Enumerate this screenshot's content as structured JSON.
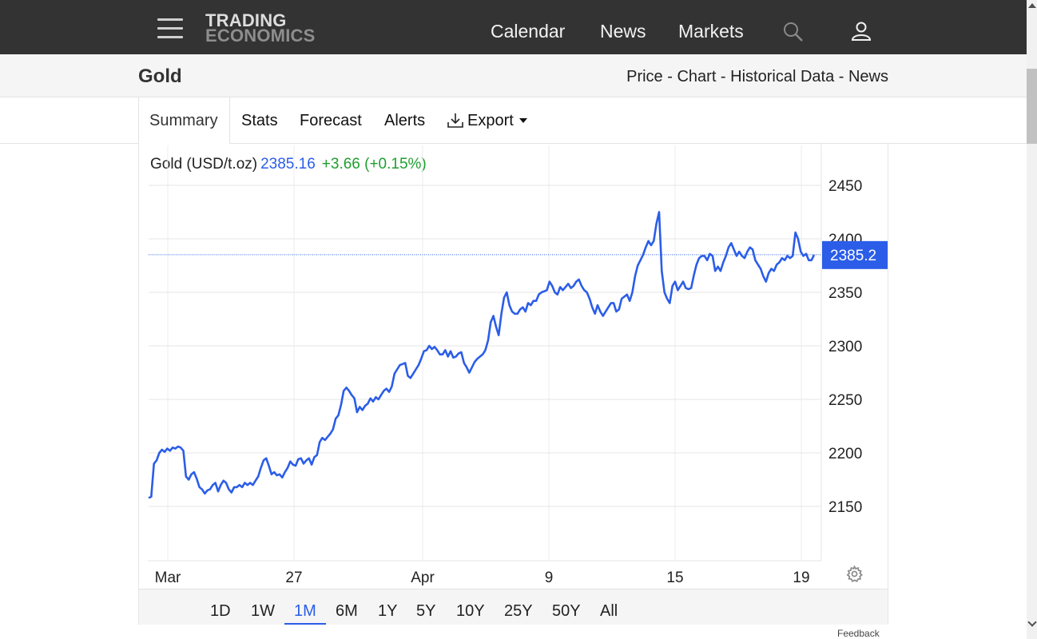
{
  "header": {
    "logo_line1": "TRADING",
    "logo_line2": "ECONOMICS",
    "nav": [
      "Calendar",
      "News",
      "Markets"
    ],
    "icons": [
      "menu-icon",
      "search-icon",
      "user-icon"
    ]
  },
  "page": {
    "title": "Gold",
    "crumbs": [
      "Price",
      "Chart",
      "Historical Data",
      "News"
    ],
    "crumb_sep": " - "
  },
  "tabs": [
    "Summary",
    "Stats",
    "Forecast",
    "Alerts",
    "Export"
  ],
  "quote": {
    "name": "Gold (USD/t.oz)",
    "price": "2385.16",
    "change": "+3.66 (+0.15%)"
  },
  "colors": {
    "line": "#2b5de8",
    "positive": "#1f9f2e",
    "topbar": "#333333",
    "last_price_tag": "#2b5de8"
  },
  "chart_data": {
    "type": "line",
    "series": [
      {
        "values": [
          2158,
          2159,
          2190,
          2193,
          2200,
          2203,
          2201,
          2204,
          2202,
          2205,
          2204,
          2206,
          2205,
          2202,
          2178,
          2175,
          2180,
          2182,
          2176,
          2168,
          2166,
          2162,
          2165,
          2166,
          2170,
          2172,
          2164,
          2170,
          2174,
          2172,
          2166,
          2163,
          2168,
          2168,
          2170,
          2168,
          2172,
          2170,
          2172,
          2170,
          2174,
          2178,
          2186,
          2193,
          2195,
          2188,
          2180,
          2182,
          2179,
          2180,
          2177,
          2182,
          2186,
          2192,
          2189,
          2188,
          2194,
          2195,
          2190,
          2193,
          2195,
          2189,
          2196,
          2198,
          2210,
          2214,
          2212,
          2215,
          2218,
          2222,
          2232,
          2235,
          2245,
          2258,
          2261,
          2258,
          2254,
          2251,
          2238,
          2243,
          2240,
          2244,
          2246,
          2251,
          2248,
          2252,
          2250,
          2254,
          2258,
          2260,
          2257,
          2262,
          2274,
          2278,
          2282,
          2283,
          2284,
          2272,
          2270,
          2274,
          2278,
          2282,
          2288,
          2295,
          2296,
          2300,
          2297,
          2299,
          2296,
          2292,
          2292,
          2296,
          2290,
          2295,
          2289,
          2290,
          2293,
          2294,
          2284,
          2280,
          2275,
          2280,
          2285,
          2288,
          2290,
          2292,
          2296,
          2305,
          2322,
          2328,
          2318,
          2310,
          2330,
          2345,
          2350,
          2338,
          2332,
          2330,
          2330,
          2334,
          2336,
          2332,
          2340,
          2338,
          2342,
          2342,
          2348,
          2350,
          2351,
          2352,
          2360,
          2356,
          2350,
          2348,
          2355,
          2352,
          2355,
          2358,
          2354,
          2356,
          2360,
          2362,
          2356,
          2352,
          2350,
          2344,
          2336,
          2330,
          2338,
          2332,
          2328,
          2332,
          2336,
          2340,
          2340,
          2332,
          2334,
          2344,
          2346,
          2348,
          2342,
          2350,
          2365,
          2375,
          2380,
          2385,
          2392,
          2398,
          2394,
          2398,
          2414,
          2425,
          2370,
          2350,
          2344,
          2340,
          2356,
          2360,
          2352,
          2356,
          2360,
          2354,
          2353,
          2354,
          2366,
          2376,
          2382,
          2384,
          2384,
          2380,
          2386,
          2384,
          2370,
          2374,
          2370,
          2378,
          2384,
          2392,
          2396,
          2390,
          2384,
          2388,
          2384,
          2382,
          2388,
          2392,
          2390,
          2380,
          2376,
          2372,
          2365,
          2360,
          2368,
          2372,
          2370,
          2376,
          2378,
          2382,
          2380,
          2384,
          2382,
          2384,
          2406,
          2400,
          2388,
          2384,
          2386,
          2380,
          2380,
          2385
        ]
      }
    ],
    "x_ticks": [
      "Mar",
      "27",
      "Apr",
      "9",
      "15",
      "19"
    ],
    "y_ticks": [
      2150,
      2200,
      2250,
      2300,
      2350,
      2400,
      2450
    ],
    "ylim": [
      2100,
      2465
    ],
    "last_value_label": "2385.2",
    "last_value": 2385.2,
    "grid": true,
    "y_axis_side": "right"
  },
  "ranges": [
    "1D",
    "1W",
    "1M",
    "6M",
    "1Y",
    "5Y",
    "10Y",
    "25Y",
    "50Y",
    "All"
  ],
  "active_range": "1M",
  "footer_fragment": "Feedback"
}
